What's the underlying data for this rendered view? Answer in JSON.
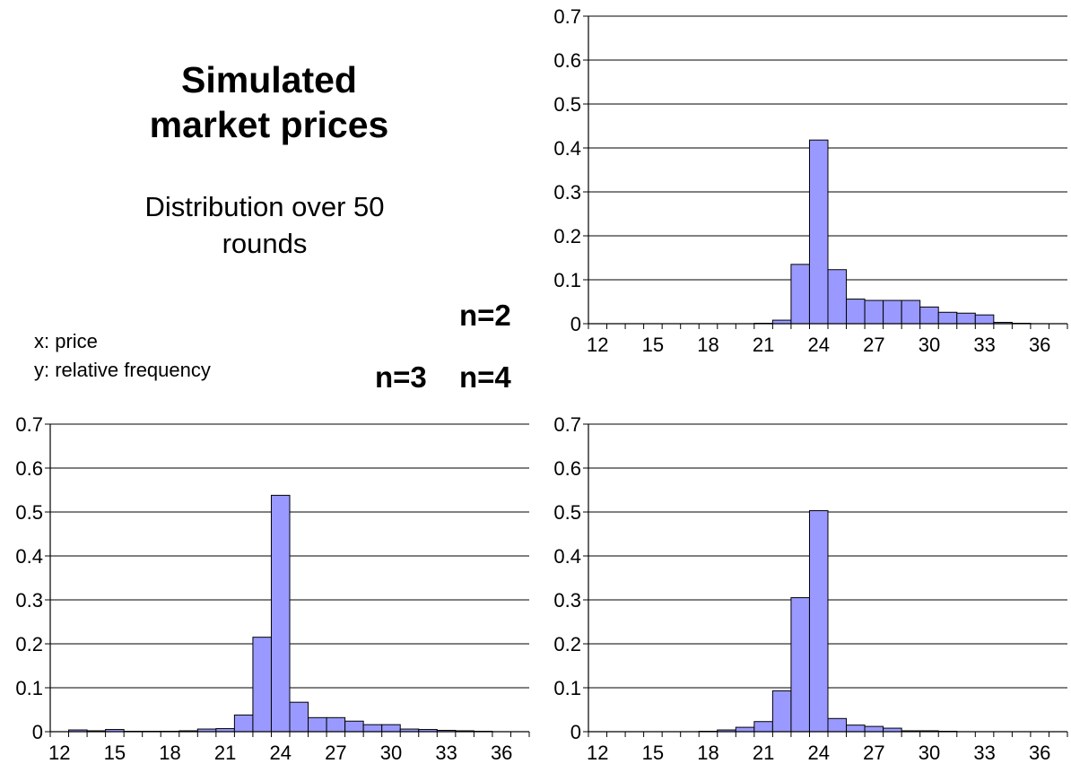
{
  "title_lines": [
    "Simulated",
    "market prices"
  ],
  "subtitle_lines": [
    "Distribution over 50",
    "rounds"
  ],
  "axis_notes": {
    "x": "x: price",
    "y": "y: relative frequency"
  },
  "n_labels": {
    "n2": "n=2",
    "n3": "n=3",
    "n4": "n=4"
  },
  "bar_color": "#9999FF",
  "chart_data": [
    {
      "type": "bar",
      "title": "",
      "xlabel": "",
      "ylabel": "",
      "ylim": [
        0,
        0.7
      ],
      "yticks": [
        "0",
        "0.1",
        "0.2",
        "0.3",
        "0.4",
        "0.5",
        "0.6",
        "0.7"
      ],
      "xticks": [
        "12",
        "15",
        "18",
        "21",
        "24",
        "27",
        "30",
        "33",
        "36"
      ],
      "categories": [
        12,
        13,
        14,
        15,
        16,
        17,
        18,
        19,
        20,
        21,
        22,
        23,
        24,
        25,
        26,
        27,
        28,
        29,
        30,
        31,
        32,
        33,
        34,
        35,
        36,
        37
      ],
      "values": [
        0,
        0,
        0,
        0,
        0,
        0,
        0,
        0,
        0,
        0.001,
        0.008,
        0.135,
        0.418,
        0.123,
        0.056,
        0.053,
        0.053,
        0.053,
        0.038,
        0.026,
        0.024,
        0.02,
        0.003,
        0.001,
        0,
        0
      ],
      "grid": true
    },
    {
      "type": "bar",
      "title": "",
      "xlabel": "",
      "ylabel": "",
      "ylim": [
        0,
        0.7
      ],
      "yticks": [
        "0",
        "0.1",
        "0.2",
        "0.3",
        "0.4",
        "0.5",
        "0.6",
        "0.7"
      ],
      "xticks": [
        "12",
        "15",
        "18",
        "21",
        "24",
        "27",
        "30",
        "33",
        "36"
      ],
      "categories": [
        12,
        13,
        14,
        15,
        16,
        17,
        18,
        19,
        20,
        21,
        22,
        23,
        24,
        25,
        26,
        27,
        28,
        29,
        30,
        31,
        32,
        33,
        34,
        35,
        36,
        37
      ],
      "values": [
        0,
        0.004,
        0.002,
        0.005,
        0.001,
        0.001,
        0.001,
        0.002,
        0.006,
        0.007,
        0.038,
        0.215,
        0.538,
        0.067,
        0.032,
        0.032,
        0.024,
        0.016,
        0.016,
        0.006,
        0.005,
        0.003,
        0.002,
        0.001,
        0,
        0
      ],
      "grid": true
    },
    {
      "type": "bar",
      "title": "",
      "xlabel": "",
      "ylabel": "",
      "ylim": [
        0,
        0.7
      ],
      "yticks": [
        "0",
        "0.1",
        "0.2",
        "0.3",
        "0.4",
        "0.5",
        "0.6",
        "0.7"
      ],
      "xticks": [
        "12",
        "15",
        "18",
        "21",
        "24",
        "27",
        "30",
        "33",
        "36"
      ],
      "categories": [
        12,
        13,
        14,
        15,
        16,
        17,
        18,
        19,
        20,
        21,
        22,
        23,
        24,
        25,
        26,
        27,
        28,
        29,
        30,
        31,
        32,
        33,
        34,
        35,
        36,
        37
      ],
      "values": [
        0,
        0,
        0,
        0,
        0,
        0,
        0.001,
        0.004,
        0.01,
        0.023,
        0.093,
        0.305,
        0.503,
        0.03,
        0.015,
        0.012,
        0.008,
        0.002,
        0.002,
        0.001,
        0,
        0,
        0,
        0,
        0,
        0
      ],
      "grid": true
    }
  ]
}
